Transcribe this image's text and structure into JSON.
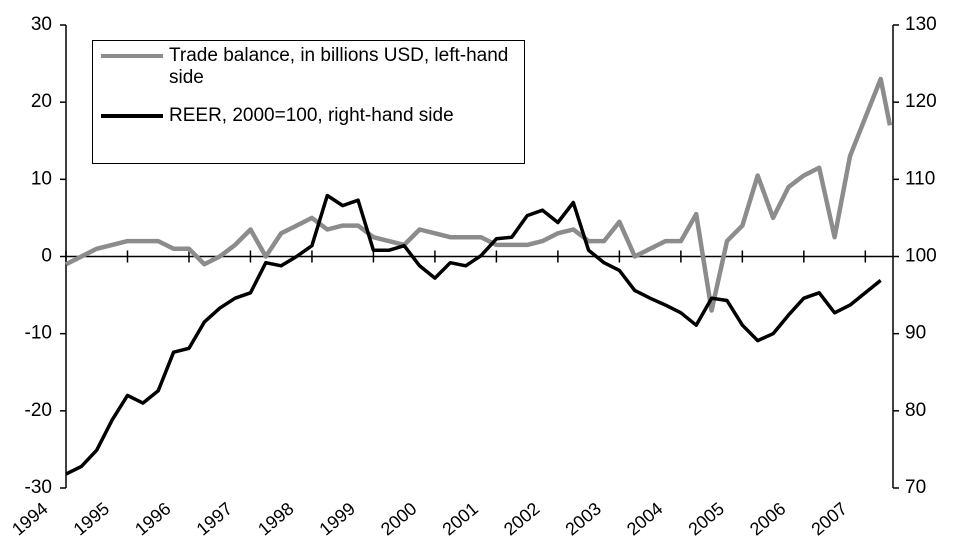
{
  "chart_data": {
    "type": "line",
    "x": [
      1994,
      1994.25,
      1994.5,
      1994.75,
      1995,
      1995.25,
      1995.5,
      1995.75,
      1996,
      1996.25,
      1996.5,
      1996.75,
      1997,
      1997.25,
      1997.5,
      1997.75,
      1998,
      1998.25,
      1998.5,
      1998.75,
      1999,
      1999.25,
      1999.5,
      1999.75,
      2000,
      2000.25,
      2000.5,
      2000.75,
      2001,
      2001.25,
      2001.5,
      2001.75,
      2002,
      2002.25,
      2002.5,
      2002.75,
      2003,
      2003.25,
      2003.5,
      2003.75,
      2004,
      2004.25,
      2004.5,
      2004.75,
      2005,
      2005.25,
      2005.5,
      2005.75,
      2006,
      2006.25,
      2006.5,
      2006.75,
      2007,
      2007.25,
      2007.4
    ],
    "series": [
      {
        "name": "Trade balance, in billions USD, left-hand side",
        "color": "#8c8c8c",
        "axis": "y",
        "values": [
          -1,
          0,
          1,
          1.5,
          2,
          2,
          2,
          1,
          1,
          -1,
          0,
          1.5,
          3.5,
          0,
          3,
          4,
          5,
          3.5,
          4,
          4,
          2.5,
          2,
          1.5,
          3.5,
          3,
          2.5,
          2.5,
          2.5,
          1.5,
          1.5,
          1.5,
          2,
          3,
          3.5,
          2,
          2,
          4.5,
          0,
          1,
          2,
          2,
          5.5,
          -7,
          2,
          4,
          10.5,
          5,
          9,
          10.5,
          11.5,
          2.5,
          13,
          18,
          23,
          17
        ]
      },
      {
        "name": "REER, 2000=100, right-hand side",
        "color": "#000000",
        "axis": "y2",
        "values": [
          71.8,
          72.8,
          74.9,
          78.8,
          82,
          81,
          82.6,
          87.6,
          88.1,
          91.5,
          93.3,
          94.6,
          95.3,
          99.2,
          98.8,
          100,
          101.4,
          107.9,
          106.6,
          107.3,
          100.8,
          100.8,
          101.4,
          98.8,
          97.2,
          99.2,
          98.8,
          100.1,
          102.3,
          102.5,
          105.3,
          106,
          104.4,
          107,
          100.8,
          99.2,
          98.2,
          95.6,
          94.6,
          93.7,
          92.7,
          91.1,
          94.6,
          94.3,
          91.1,
          89.1,
          90,
          92.4,
          94.6,
          95.3,
          92.7,
          93.7,
          95.3,
          96.9,
          null
        ]
      }
    ],
    "xlim": [
      1994,
      2007.45
    ],
    "xticks": [
      1994,
      1995,
      1996,
      1997,
      1998,
      1999,
      2000,
      2001,
      2002,
      2003,
      2004,
      2005,
      2006,
      2007
    ],
    "ylim": [
      -30,
      30
    ],
    "yticks": [
      -30,
      -20,
      -10,
      0,
      10,
      20,
      30
    ],
    "y2lim": [
      70,
      130
    ],
    "y2ticks": [
      70,
      80,
      90,
      100,
      110,
      120,
      130
    ],
    "grid": false
  }
}
